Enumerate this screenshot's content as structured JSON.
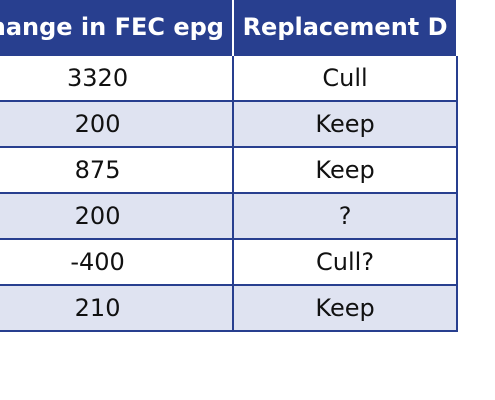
{
  "table": {
    "headers": [
      "Change in FEC epg",
      "Replacement D"
    ],
    "rows": [
      [
        "3320",
        "Cull"
      ],
      [
        "200",
        "Keep"
      ],
      [
        "875",
        "Keep"
      ],
      [
        "200",
        "?"
      ],
      [
        "-400",
        "Cull?"
      ],
      [
        "210",
        "Keep"
      ]
    ]
  },
  "colors": {
    "header_bg": "#283f8f",
    "header_text": "#ffffff",
    "alt_row_bg": "#dfe3f1",
    "border": "#283f8f"
  }
}
